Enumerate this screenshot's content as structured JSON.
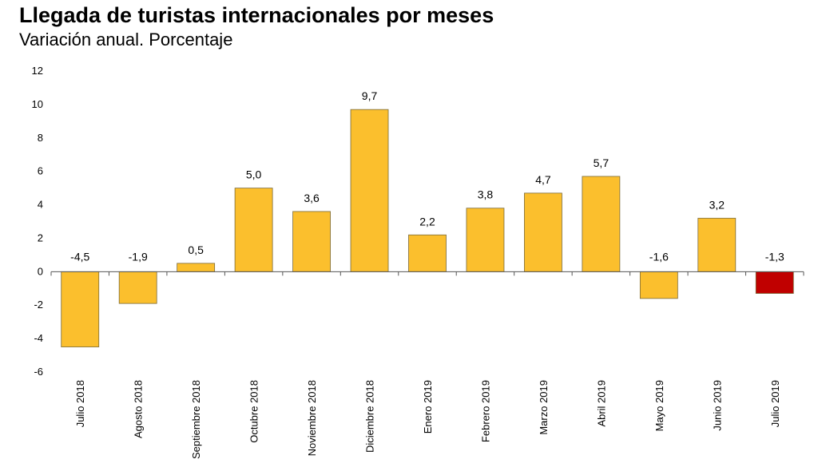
{
  "chart_data": {
    "type": "bar",
    "title": "Llegada de turistas internacionales por meses",
    "subtitle": "Variación anual. Porcentaje",
    "categories": [
      "Julio 2018",
      "Agosto 2018",
      "Septiembre 2018",
      "Octubre 2018",
      "Noviembre 2018",
      "Diciembre 2018",
      "Enero 2019",
      "Febrero 2019",
      "Marzo 2019",
      "Abril 2019",
      "Mayo 2019",
      "Junio 2019",
      "Julio 2019"
    ],
    "values": [
      -4.5,
      -1.9,
      0.5,
      5.0,
      3.6,
      9.7,
      2.2,
      3.8,
      4.7,
      5.7,
      -1.6,
      3.2,
      -1.3
    ],
    "value_labels": [
      "-4,5",
      "-1,9",
      "0,5",
      "5,0",
      "3,6",
      "9,7",
      "2,2",
      "3,8",
      "4,7",
      "5,7",
      "-1,6",
      "3,2",
      "-1,3"
    ],
    "ylim": [
      -6,
      12
    ],
    "yticks": [
      12,
      10,
      8,
      6,
      4,
      2,
      0,
      -2,
      -4,
      -6
    ],
    "xlabel": "",
    "ylabel": "",
    "grid": false,
    "colors": {
      "bar": "#fbbf2d",
      "highlight": "#c00000",
      "outline": "#7a6a3a"
    },
    "highlight_index": 12
  }
}
